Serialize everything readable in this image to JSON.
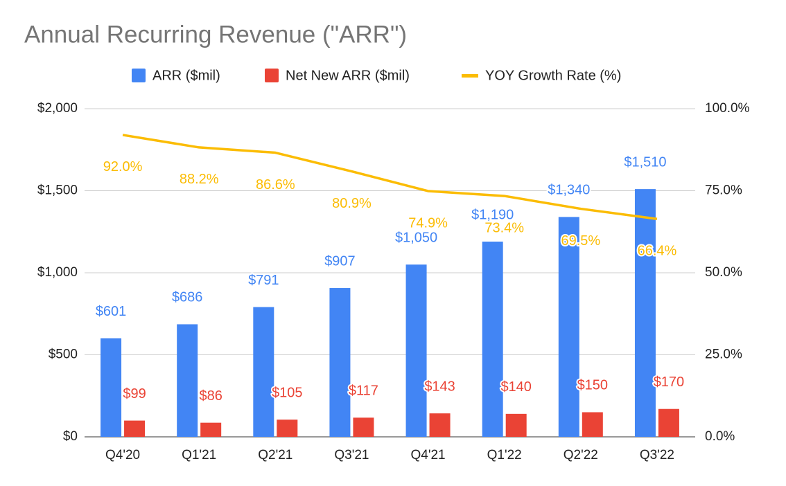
{
  "chart_data": {
    "type": "bar-line",
    "title": "Annual Recurring Revenue (\"ARR\")",
    "categories": [
      "Q4'20",
      "Q1'21",
      "Q2'21",
      "Q3'21",
      "Q4'21",
      "Q1'22",
      "Q2'22",
      "Q3'22"
    ],
    "series": [
      {
        "name": "ARR ($mil)",
        "color": "#4285f4",
        "type": "bar",
        "values": [
          601,
          686,
          791,
          907,
          1050,
          1190,
          1340,
          1510
        ],
        "value_labels": [
          "$601",
          "$686",
          "$791",
          "$907",
          "$1,050",
          "$1,190",
          "$1,340",
          "$1,510"
        ]
      },
      {
        "name": "Net New ARR ($mil)",
        "color": "#ea4335",
        "type": "bar",
        "values": [
          99,
          86,
          105,
          117,
          143,
          140,
          150,
          170
        ],
        "value_labels": [
          "$99",
          "$86",
          "$105",
          "$117",
          "$143",
          "$140",
          "$150",
          "$170"
        ]
      },
      {
        "name": "YOY Growth Rate (%)",
        "color": "#fbbc04",
        "type": "line",
        "axis": "y2",
        "values": [
          92.0,
          88.2,
          86.6,
          80.9,
          74.9,
          73.4,
          69.5,
          66.4
        ],
        "value_labels": [
          "92.0%",
          "88.2%",
          "86.6%",
          "80.9%",
          "74.9%",
          "73.4%",
          "69.5%",
          "66.4%"
        ]
      }
    ],
    "ylim": [
      0,
      2000
    ],
    "yticks": [
      {
        "value": 0,
        "label": "$0"
      },
      {
        "value": 500,
        "label": "$500"
      },
      {
        "value": 1000,
        "label": "$1,000"
      },
      {
        "value": 1500,
        "label": "$1,500"
      },
      {
        "value": 2000,
        "label": "$2,000"
      }
    ],
    "y2lim": [
      0,
      100
    ],
    "y2ticks": [
      {
        "value": 0,
        "label": "0.0%"
      },
      {
        "value": 25,
        "label": "25.0%"
      },
      {
        "value": 50,
        "label": "50.0%"
      },
      {
        "value": 75,
        "label": "75.0%"
      },
      {
        "value": 100,
        "label": "100.0%"
      }
    ],
    "grid": true,
    "legend": "top"
  }
}
